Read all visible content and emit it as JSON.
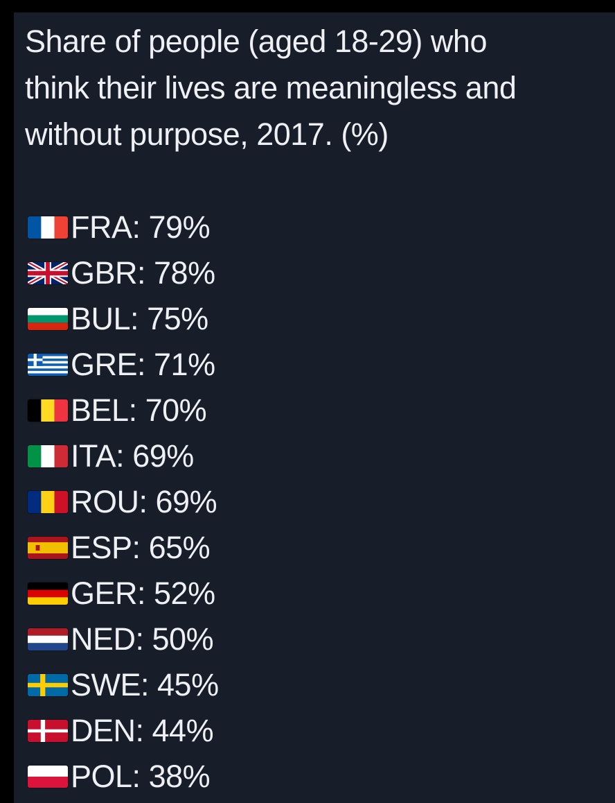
{
  "title_lines": [
    "Share of people (aged 18-29) who",
    "think their lives are meaningless and",
    "without purpose, 2017. (%)"
  ],
  "rows": [
    {
      "code": "FRA",
      "value": "79%",
      "flag_icon": "france-flag-icon"
    },
    {
      "code": "GBR",
      "value": "78%",
      "flag_icon": "uk-flag-icon"
    },
    {
      "code": "BUL",
      "value": "75%",
      "flag_icon": "bulgaria-flag-icon"
    },
    {
      "code": "GRE",
      "value": "71%",
      "flag_icon": "greece-flag-icon"
    },
    {
      "code": "BEL",
      "value": "70%",
      "flag_icon": "belgium-flag-icon"
    },
    {
      "code": "ITA",
      "value": "69%",
      "flag_icon": "italy-flag-icon"
    },
    {
      "code": "ROU",
      "value": "69%",
      "flag_icon": "romania-flag-icon"
    },
    {
      "code": "ESP",
      "value": "65%",
      "flag_icon": "spain-flag-icon"
    },
    {
      "code": "GER",
      "value": "52%",
      "flag_icon": "germany-flag-icon"
    },
    {
      "code": "NED",
      "value": "50%",
      "flag_icon": "netherlands-flag-icon"
    },
    {
      "code": "SWE",
      "value": "45%",
      "flag_icon": "sweden-flag-icon"
    },
    {
      "code": "DEN",
      "value": "44%",
      "flag_icon": "denmark-flag-icon"
    },
    {
      "code": "POL",
      "value": "38%",
      "flag_icon": "poland-flag-icon"
    }
  ],
  "colors": {
    "background": "#171d29",
    "text": "#eef0f3"
  }
}
